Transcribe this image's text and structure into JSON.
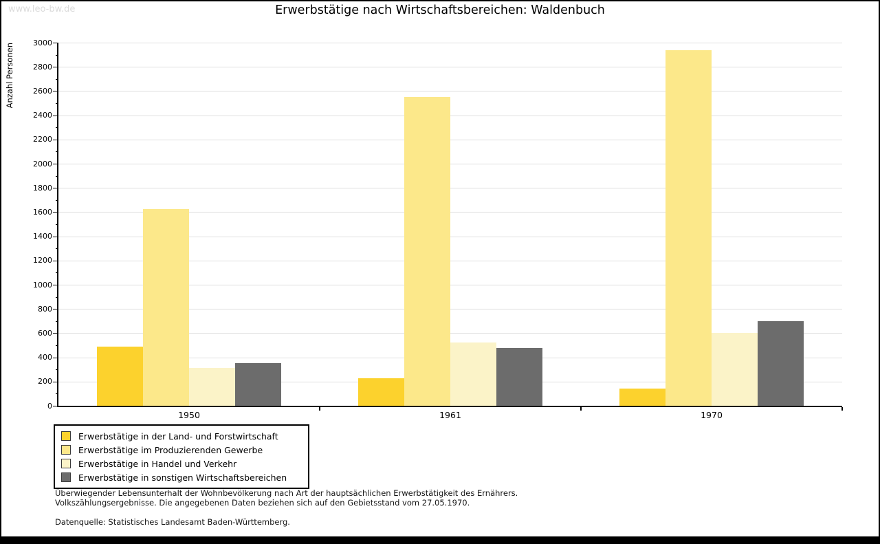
{
  "watermark": "www.leo-bw.de",
  "chart_data": {
    "type": "bar",
    "title": "Erwerbstätige nach Wirtschaftsbereichen: Waldenbuch",
    "xlabel": "",
    "ylabel": "Anzahl Personen",
    "ylim": [
      0,
      3000
    ],
    "yticks": [
      0,
      200,
      400,
      600,
      800,
      1000,
      1200,
      1400,
      1600,
      1800,
      2000,
      2200,
      2400,
      2600,
      2800,
      3000
    ],
    "minor_tick_step": 100,
    "grid": true,
    "grid_color": "#dedede",
    "legend_position": "bottom-left",
    "categories": [
      "1950",
      "1961",
      "1970"
    ],
    "series": [
      {
        "name": "Erwerbstätige in der Land- und Forstwirtschaft",
        "color": "#fcd22d",
        "values": [
          490,
          225,
          140
        ]
      },
      {
        "name": "Erwerbstätige im Produzierenden Gewerbe",
        "color": "#fce88a",
        "values": [
          1625,
          2550,
          2940
        ]
      },
      {
        "name": "Erwerbstätige in Handel und Verkehr",
        "color": "#fbf3c8",
        "values": [
          310,
          525,
          600
        ]
      },
      {
        "name": "Erwerbstätige in sonstigen Wirtschaftsbereichen",
        "color": "#6c6c6c",
        "values": [
          355,
          480,
          700
        ]
      }
    ]
  },
  "footer": {
    "line1": "Überwiegender Lebensunterhalt der Wohnbevölkerung nach Art der hauptsächlichen Erwerbstätigkeit des Ernährers.",
    "line2": "Volkszählungsergebnisse. Die angegebenen Daten beziehen sich auf den Gebietsstand vom 27.05.1970.",
    "source": "Datenquelle: Statistisches Landesamt Baden-Württemberg."
  }
}
